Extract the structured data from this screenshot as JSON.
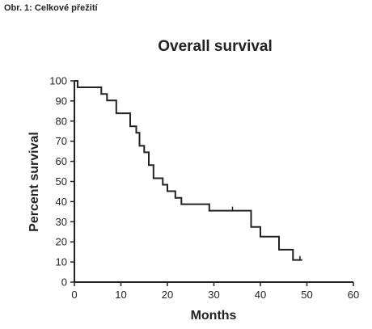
{
  "figure_caption": "Obr. 1: Celkové přežití",
  "chart_data": {
    "type": "line",
    "subtype": "kaplan-meier step curve",
    "title": "Overall survival",
    "xlabel": "Months",
    "ylabel": "Percent survival",
    "xlim": [
      0,
      60
    ],
    "ylim": [
      0,
      100
    ],
    "x_ticks": [
      0,
      10,
      20,
      30,
      40,
      50,
      60
    ],
    "y_ticks": [
      0,
      10,
      20,
      30,
      40,
      50,
      60,
      70,
      80,
      90,
      100
    ],
    "grid": false,
    "legend": "none",
    "line_color": "#222222",
    "series": [
      {
        "step_points": [
          [
            0,
            100
          ],
          [
            0.7,
            100
          ],
          [
            0.7,
            96.8
          ],
          [
            5.8,
            96.8
          ],
          [
            5.8,
            93.5
          ],
          [
            7,
            93.5
          ],
          [
            7,
            90.3
          ],
          [
            9,
            90.3
          ],
          [
            9,
            83.9
          ],
          [
            12,
            83.9
          ],
          [
            12,
            77.4
          ],
          [
            13.3,
            77.4
          ],
          [
            13.3,
            74.2
          ],
          [
            14,
            74.2
          ],
          [
            14,
            67.7
          ],
          [
            15,
            67.7
          ],
          [
            15,
            64.5
          ],
          [
            16,
            64.5
          ],
          [
            16,
            58.1
          ],
          [
            17,
            58.1
          ],
          [
            17,
            51.6
          ],
          [
            19,
            51.6
          ],
          [
            19,
            48.4
          ],
          [
            20,
            48.4
          ],
          [
            20,
            45.2
          ],
          [
            21.7,
            45.2
          ],
          [
            21.7,
            41.9
          ],
          [
            23,
            41.9
          ],
          [
            23,
            38.7
          ],
          [
            29,
            38.7
          ],
          [
            29,
            35.5
          ],
          [
            38,
            35.5
          ],
          [
            38,
            27.4
          ],
          [
            40,
            27.4
          ],
          [
            40,
            22.6
          ],
          [
            44,
            22.6
          ],
          [
            44,
            16.1
          ],
          [
            47,
            16.1
          ],
          [
            47,
            11
          ],
          [
            49,
            11
          ]
        ],
        "censored_x": [
          34,
          48.5
        ]
      }
    ]
  }
}
